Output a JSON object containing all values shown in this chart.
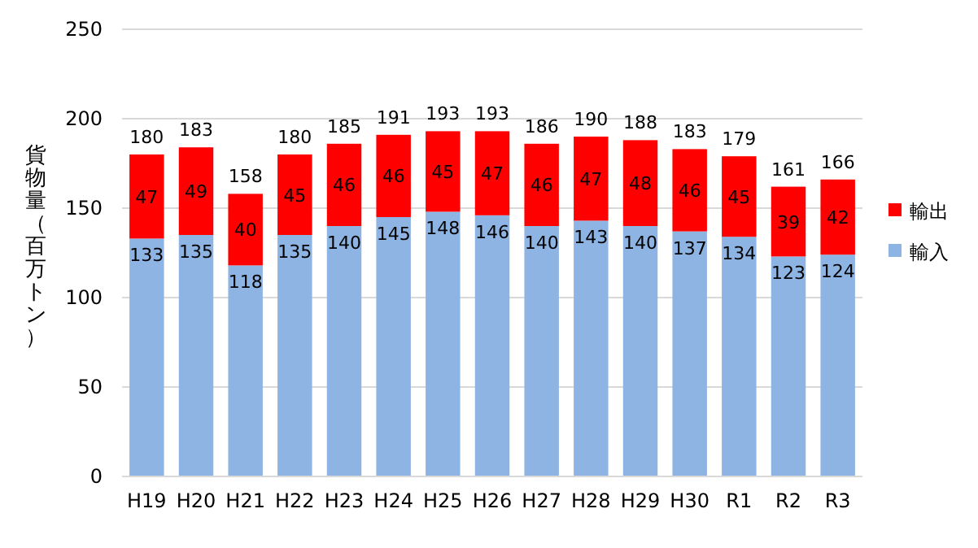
{
  "chart_data": {
    "type": "bar",
    "stacked": true,
    "ylabel": "貨物量（百万トン）",
    "categories": [
      "H19",
      "H20",
      "H21",
      "H22",
      "H23",
      "H24",
      "H25",
      "H26",
      "H27",
      "H28",
      "H29",
      "H30",
      "R1",
      "R2",
      "R3"
    ],
    "series": [
      {
        "name": "輸入",
        "color": "#8eb4e3",
        "values": [
          133,
          135,
          118,
          135,
          140,
          145,
          148,
          146,
          140,
          143,
          140,
          137,
          134,
          123,
          124
        ]
      },
      {
        "name": "輸出",
        "color": "#ff0000",
        "values": [
          47,
          49,
          40,
          45,
          46,
          46,
          45,
          47,
          46,
          47,
          48,
          46,
          45,
          39,
          42
        ]
      }
    ],
    "totals": [
      "180",
      "183",
      "158",
      "180",
      "185",
      "191",
      "193",
      "193",
      "186",
      "190",
      "188",
      "183",
      "179",
      "161",
      "166"
    ],
    "ylim": [
      0,
      250
    ],
    "yticks": [
      0,
      50,
      100,
      150,
      200,
      250
    ],
    "grid": "y",
    "legend": "right",
    "data_labels": true
  }
}
